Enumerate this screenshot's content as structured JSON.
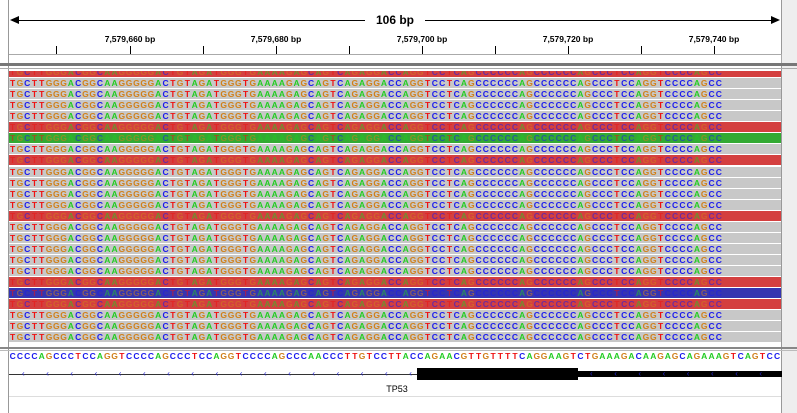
{
  "ruler": {
    "span_label": "106 bp",
    "ticks": [
      {
        "label": "7,579,660 bp"
      },
      {
        "label": "7,579,680 bp"
      },
      {
        "label": "7,579,700 bp"
      },
      {
        "label": "7,579,720 bp"
      },
      {
        "label": "7,579,740 bp"
      }
    ]
  },
  "colors": {
    "A": "#22cc22",
    "C": "#1a1aee",
    "G": "#d1801a",
    "T": "#ee1111",
    "gray": "#c8c8c8",
    "red": "#d43f3f",
    "green": "#33aa33",
    "blue": "#3535b0"
  },
  "read_sequence": "TGCTTGGGACGGCAAGGGGGACTGTAGATGGGTGAAAAGAGCAGTCAGAGGACCAGGTCCTCAGCCCCCCAGCCCCCCAGCCCTCCAGGTCCCCAGCC",
  "reads": [
    "red",
    "gray",
    "gray",
    "gray",
    "gray",
    "red",
    "green",
    "gray",
    "red",
    "gray",
    "gray",
    "gray",
    "gray",
    "red",
    "gray",
    "gray",
    "gray",
    "gray",
    "gray",
    "red",
    "blue",
    "red",
    "gray",
    "gray",
    "gray"
  ],
  "reference_sequence": "CCCCAGCCCTCCAGGTCCCCAGCCCTCCAGGTCCCCAGCCCAACCCTTGTCCTTACCAGAACGTTGTTTTCAGGAAGTCTGAAAGACAAGAGCAGAAAGTCAGTCC",
  "gene": {
    "name": "TP53",
    "strand": "-"
  }
}
